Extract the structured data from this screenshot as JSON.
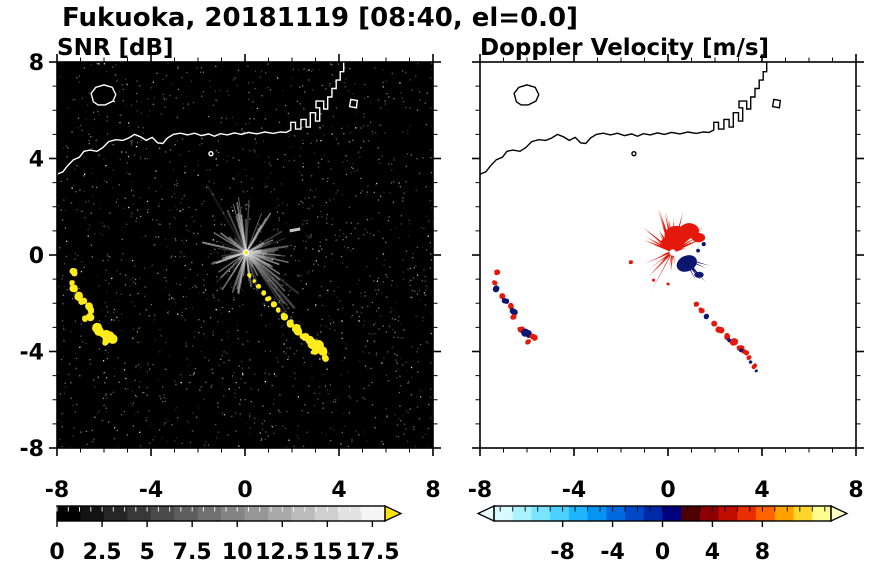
{
  "chart_data": {
    "type": "heatmap",
    "title": "Fukuoka, 20181119 [08:40, el=0.0]",
    "panels": [
      {
        "title": "SNR [dB]",
        "kind": "snr",
        "bg": "#000000",
        "coast_color": "#ffffff",
        "xlim": [
          -8,
          8
        ],
        "ylim": [
          -8,
          8
        ],
        "xticks": [
          -8,
          -4,
          0,
          4,
          8
        ],
        "xtick_labels": [
          "-8",
          "-4",
          "0",
          "4",
          "8"
        ],
        "yticks": [
          8,
          4,
          0,
          -4,
          -8
        ],
        "ytick_labels": [
          "8",
          "4",
          "0",
          "-4",
          "-8"
        ],
        "minor_tick_step": 1,
        "noise": {
          "seed": 9,
          "count": 1700
        },
        "starburst": {
          "cx": 0.05,
          "cy": 0.1,
          "seed": 7,
          "count": 85,
          "color": "#d4d4d4",
          "core_colors": [
            "#ffffff",
            "#ffe400"
          ]
        },
        "bright_dash": [
          [
            1.9,
            1.0
          ],
          [
            2.35,
            1.08
          ]
        ],
        "echo_color": "#ffec1a",
        "west_cluster": [
          [
            -7.3,
            -0.72,
            0.13
          ],
          [
            -7.38,
            -1.15,
            0.12
          ],
          [
            -7.28,
            -1.42,
            0.15
          ],
          [
            -7.1,
            -1.68,
            0.17
          ],
          [
            -6.92,
            -1.9,
            0.14
          ],
          [
            -6.7,
            -2.12,
            0.14
          ],
          [
            -6.55,
            -2.32,
            0.17
          ],
          [
            -6.6,
            -2.58,
            0.14
          ],
          [
            -6.82,
            -2.62,
            0.11
          ],
          [
            -6.28,
            -3.08,
            0.18
          ],
          [
            -6.0,
            -3.28,
            0.22
          ],
          [
            -5.72,
            -3.42,
            0.19
          ],
          [
            -5.95,
            -3.6,
            0.14
          ]
        ],
        "chain": [
          [
            0.18,
            -0.85,
            0.07
          ],
          [
            0.38,
            -1.08,
            0.08
          ],
          [
            0.58,
            -1.32,
            0.09
          ],
          [
            0.78,
            -1.56,
            0.1
          ],
          [
            0.98,
            -1.8,
            0.1
          ],
          [
            1.18,
            -2.04,
            0.11
          ],
          [
            1.42,
            -2.3,
            0.12
          ],
          [
            1.66,
            -2.56,
            0.13
          ],
          [
            1.92,
            -2.82,
            0.14
          ],
          [
            2.2,
            -3.1,
            0.16
          ],
          [
            2.5,
            -3.38,
            0.18
          ],
          [
            2.78,
            -3.62,
            0.2
          ],
          [
            3.05,
            -3.85,
            0.21
          ],
          [
            3.3,
            -4.05,
            0.17
          ],
          [
            2.95,
            -4.02,
            0.13
          ],
          [
            3.45,
            -4.25,
            0.12
          ]
        ]
      },
      {
        "title": "Doppler Velocity [m/s]",
        "kind": "velocity",
        "bg": "#ffffff",
        "coast_color": "#000000",
        "xlim": [
          -8,
          8
        ],
        "ylim": [
          -8,
          8
        ],
        "xticks": [
          -8,
          -4,
          0,
          4,
          8
        ],
        "xtick_labels": [
          "-8",
          "-4",
          "0",
          "4",
          "8"
        ],
        "yticks": [
          8,
          4,
          0,
          -4,
          -8
        ],
        "ytick_labels": [
          "8",
          "4",
          "0",
          "-4",
          "-8"
        ],
        "minor_tick_step": 1,
        "colors": {
          "away": "#e4190c",
          "toward": "#0d1670"
        },
        "fan": {
          "cx": 0.2,
          "cy": 0.15,
          "seed": 11
        },
        "west_cluster": [
          [
            -7.3,
            -0.72,
            0.1,
            0
          ],
          [
            -7.38,
            -1.15,
            0.09,
            0
          ],
          [
            -7.28,
            -1.42,
            0.11,
            1
          ],
          [
            -7.1,
            -1.68,
            0.12,
            0
          ],
          [
            -6.92,
            -1.9,
            0.1,
            1
          ],
          [
            -6.7,
            -2.12,
            0.1,
            0
          ],
          [
            -6.55,
            -2.32,
            0.12,
            1
          ],
          [
            -6.6,
            -2.58,
            0.1,
            0
          ],
          [
            -6.28,
            -3.08,
            0.13,
            0
          ],
          [
            -6.0,
            -3.28,
            0.15,
            1
          ],
          [
            -5.72,
            -3.42,
            0.13,
            0
          ],
          [
            -5.95,
            -3.6,
            0.1,
            0
          ]
        ],
        "chain": [
          [
            1.18,
            -2.04,
            0.09,
            0
          ],
          [
            1.42,
            -2.3,
            0.1,
            0
          ],
          [
            1.66,
            -2.56,
            0.09,
            1
          ],
          [
            1.92,
            -2.82,
            0.12,
            0
          ],
          [
            2.2,
            -3.1,
            0.12,
            0
          ],
          [
            2.5,
            -3.38,
            0.11,
            0
          ],
          [
            2.62,
            -3.52,
            0.07,
            1
          ],
          [
            2.78,
            -3.62,
            0.13,
            0
          ],
          [
            3.05,
            -3.85,
            0.13,
            0
          ],
          [
            3.14,
            -3.98,
            0.07,
            1
          ],
          [
            3.3,
            -4.05,
            0.11,
            0
          ],
          [
            3.45,
            -4.25,
            0.09,
            0
          ],
          [
            3.52,
            -4.42,
            0.06,
            1
          ],
          [
            3.68,
            -4.62,
            0.08,
            0
          ],
          [
            3.76,
            -4.8,
            0.05,
            1
          ]
        ],
        "extra_dots": [
          [
            -1.6,
            -0.3,
            0.07,
            0
          ],
          [
            0.0,
            -1.2,
            0.05,
            0
          ],
          [
            -0.6,
            -1.05,
            0.05,
            0
          ]
        ]
      }
    ],
    "coastline": {
      "main": [
        [
          -8,
          3.35
        ],
        [
          -7.75,
          3.45
        ],
        [
          -7.55,
          3.7
        ],
        [
          -7.3,
          3.95
        ],
        [
          -7.05,
          4.05
        ],
        [
          -6.85,
          4.3
        ],
        [
          -6.6,
          4.35
        ],
        [
          -6.3,
          4.3
        ],
        [
          -6.05,
          4.45
        ],
        [
          -5.8,
          4.7
        ],
        [
          -5.5,
          4.78
        ],
        [
          -5.2,
          4.75
        ],
        [
          -4.95,
          4.85
        ],
        [
          -4.7,
          5.0
        ],
        [
          -4.45,
          4.9
        ],
        [
          -4.2,
          4.75
        ],
        [
          -3.95,
          4.88
        ],
        [
          -3.72,
          4.65
        ],
        [
          -3.5,
          4.62
        ],
        [
          -3.3,
          4.85
        ],
        [
          -3.05,
          5.0
        ],
        [
          -2.75,
          5.05
        ],
        [
          -2.45,
          4.98
        ],
        [
          -2.15,
          5.05
        ],
        [
          -1.85,
          4.95
        ],
        [
          -1.55,
          5.02
        ],
        [
          -1.3,
          4.92
        ],
        [
          -1.05,
          5.03
        ],
        [
          -0.75,
          4.98
        ],
        [
          -0.45,
          5.06
        ],
        [
          -0.15,
          5.0
        ],
        [
          0.15,
          5.08
        ],
        [
          0.5,
          5.02
        ],
        [
          0.85,
          5.1
        ],
        [
          1.2,
          5.04
        ],
        [
          1.5,
          5.1
        ],
        [
          1.75,
          5.08
        ],
        [
          1.95,
          5.18
        ],
        [
          1.95,
          5.5
        ],
        [
          2.15,
          5.5
        ],
        [
          2.15,
          5.22
        ],
        [
          2.38,
          5.22
        ],
        [
          2.38,
          5.62
        ],
        [
          2.6,
          5.62
        ],
        [
          2.6,
          5.3
        ],
        [
          2.78,
          5.3
        ],
        [
          2.78,
          5.9
        ],
        [
          3.0,
          5.9
        ],
        [
          3.0,
          5.55
        ],
        [
          3.18,
          5.55
        ],
        [
          3.18,
          6.1
        ],
        [
          3.02,
          6.1
        ],
        [
          3.02,
          6.38
        ],
        [
          3.35,
          6.38
        ],
        [
          3.35,
          6.05
        ],
        [
          3.52,
          6.05
        ],
        [
          3.52,
          6.55
        ],
        [
          3.7,
          6.55
        ],
        [
          3.7,
          6.9
        ],
        [
          3.88,
          6.9
        ],
        [
          3.88,
          7.25
        ],
        [
          4.05,
          7.25
        ],
        [
          4.05,
          7.6
        ],
        [
          4.2,
          7.6
        ],
        [
          4.2,
          8.15
        ]
      ],
      "island": [
        [
          -6.45,
          6.35
        ],
        [
          -6.55,
          6.7
        ],
        [
          -6.35,
          6.95
        ],
        [
          -6.0,
          7.05
        ],
        [
          -5.65,
          6.95
        ],
        [
          -5.5,
          6.65
        ],
        [
          -5.62,
          6.38
        ],
        [
          -5.95,
          6.22
        ],
        [
          -6.25,
          6.22
        ]
      ],
      "pier": [
        [
          4.45,
          6.15
        ],
        [
          4.5,
          6.45
        ],
        [
          4.78,
          6.4
        ],
        [
          4.74,
          6.1
        ]
      ],
      "dots": [
        [
          -1.45,
          4.2
        ]
      ]
    },
    "colorbars": [
      {
        "name": "snr",
        "range": [
          0,
          18.2
        ],
        "ticks": [
          0,
          2.5,
          5,
          7.5,
          10,
          12.5,
          15,
          17.5
        ],
        "tick_labels": [
          "0",
          "2.5",
          "5",
          "7.5",
          "10",
          "12.5",
          "15",
          "17.5"
        ],
        "minor_step": 0.625,
        "tick_color_inner": "#ffffff",
        "colors": [
          "#000000",
          "#131313",
          "#262626",
          "#383838",
          "#4b4b4b",
          "#5e5e5e",
          "#717171",
          "#848484",
          "#969696",
          "#a9a9a9",
          "#bcbcbc",
          "#cfcfcf",
          "#e2e2e2",
          "#f5f5f5"
        ],
        "arrow_right": "#ffe400"
      },
      {
        "name": "velocity",
        "range": [
          -13.5,
          13.5
        ],
        "ticks": [
          -8,
          -4,
          0,
          4,
          8
        ],
        "tick_labels": [
          "-8",
          "-4",
          "0",
          "4",
          "8"
        ],
        "minor_step": 1,
        "tick_color_inner": "#000000",
        "colors": [
          "#d8fbff",
          "#aaf2ff",
          "#7ae4ff",
          "#4cd1ff",
          "#1fb6ff",
          "#0495f2",
          "#006be0",
          "#0048c8",
          "#0029aa",
          "#000080",
          "#4f0000",
          "#8b0000",
          "#c00d00",
          "#e82f00",
          "#ff6400",
          "#ffa200",
          "#ffd62e",
          "#fffb8e"
        ],
        "arrow_left": "#eafeff",
        "arrow_right": "#ffffc8"
      }
    ]
  }
}
